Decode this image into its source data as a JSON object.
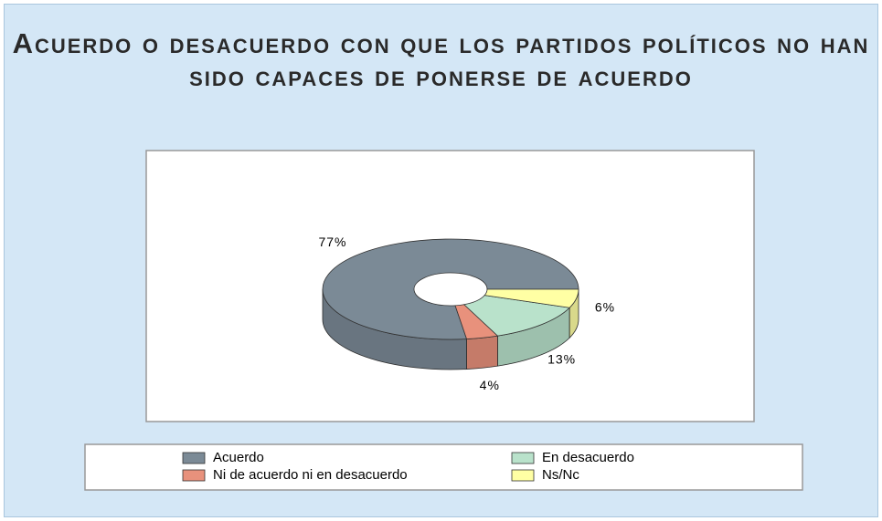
{
  "chart_data": {
    "type": "pie3d",
    "title": "Acuerdo o desacuerdo con que los partidos políticos no han sido capaces de ponerse de acuerdo",
    "categories": [
      "Acuerdo",
      "Ni de acuerdo ni en desacuerdo",
      "En desacuerdo",
      "Ns/Nc"
    ],
    "values": [
      77,
      4,
      13,
      6
    ],
    "value_labels": [
      "77%",
      "4%",
      "13%",
      "6%"
    ],
    "colors": [
      "#7b8a96",
      "#e8917c",
      "#b9e2cb",
      "#ffffa4"
    ],
    "legend": "bottom"
  }
}
